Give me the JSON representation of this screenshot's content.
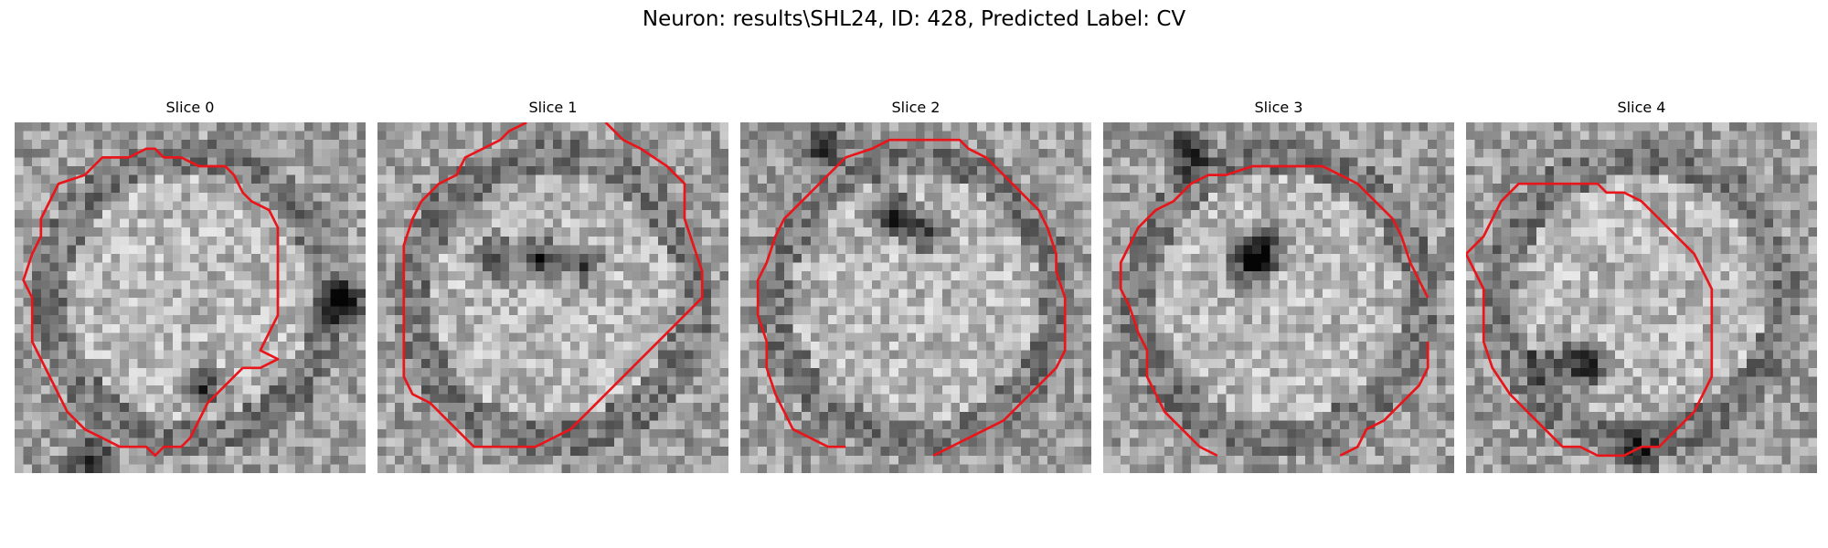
{
  "figure": {
    "title": "Neuron: results\\SHL24, ID: 428, Predicted Label: CV"
  },
  "panels": [
    {
      "title": "Slice 0",
      "seed": 11,
      "contour": [
        [
          15,
          3
        ],
        [
          16,
          3
        ],
        [
          17,
          4
        ],
        [
          19,
          4
        ],
        [
          21,
          5
        ],
        [
          24,
          5
        ],
        [
          25,
          6
        ],
        [
          26,
          8
        ],
        [
          27,
          9
        ],
        [
          29,
          10
        ],
        [
          30,
          12
        ],
        [
          30,
          22
        ],
        [
          29,
          24
        ],
        [
          28,
          26
        ],
        [
          30,
          27
        ],
        [
          28,
          28
        ],
        [
          26,
          28
        ],
        [
          24,
          30
        ],
        [
          22,
          32
        ],
        [
          21,
          34
        ],
        [
          20,
          36
        ],
        [
          19,
          37
        ],
        [
          17,
          37
        ],
        [
          16,
          38
        ],
        [
          15,
          37
        ],
        [
          12,
          37
        ],
        [
          10,
          36
        ],
        [
          8,
          35
        ],
        [
          6,
          33
        ],
        [
          5,
          31
        ],
        [
          4,
          29
        ],
        [
          3,
          27
        ],
        [
          2,
          25
        ],
        [
          2,
          20
        ],
        [
          1,
          18
        ],
        [
          2,
          15
        ],
        [
          3,
          13
        ],
        [
          3,
          11
        ],
        [
          4,
          9
        ],
        [
          5,
          7
        ],
        [
          8,
          6
        ],
        [
          10,
          4
        ],
        [
          13,
          4
        ]
      ],
      "open": false,
      "dark": [
        [
          21,
          30,
          0.5
        ],
        [
          8,
          38,
          0.6
        ],
        [
          37,
          20,
          0.7
        ]
      ]
    },
    {
      "title": "Slice 1",
      "seed": 23,
      "contour": [
        [
          17,
          0
        ],
        [
          15,
          1
        ],
        [
          14,
          2
        ],
        [
          12,
          3
        ],
        [
          10,
          4
        ],
        [
          9,
          6
        ],
        [
          7,
          7
        ],
        [
          5,
          9
        ],
        [
          4,
          11
        ],
        [
          3,
          14
        ],
        [
          3,
          29
        ],
        [
          4,
          31
        ],
        [
          6,
          32
        ],
        [
          8,
          34
        ],
        [
          10,
          36
        ],
        [
          11,
          37
        ],
        [
          13,
          37
        ],
        [
          18,
          37
        ],
        [
          20,
          36
        ],
        [
          22,
          35
        ],
        [
          24,
          33
        ],
        [
          26,
          31
        ],
        [
          28,
          29
        ],
        [
          30,
          27
        ],
        [
          33,
          24
        ],
        [
          37,
          20
        ],
        [
          37,
          17
        ],
        [
          36,
          14
        ],
        [
          35,
          11
        ],
        [
          35,
          7
        ],
        [
          33,
          5
        ],
        [
          30,
          3
        ],
        [
          28,
          2
        ],
        [
          27,
          1
        ],
        [
          26,
          0
        ]
      ],
      "open": true,
      "dark": [
        [
          13,
          15,
          0.5
        ],
        [
          18,
          15,
          0.6
        ],
        [
          23,
          16,
          0.4
        ]
      ]
    },
    {
      "title": "Slice 2",
      "seed": 37,
      "contour": [
        [
          12,
          37
        ],
        [
          10,
          37
        ],
        [
          8,
          36
        ],
        [
          6,
          35
        ],
        [
          5,
          33
        ],
        [
          4,
          31
        ],
        [
          3,
          28
        ],
        [
          3,
          25
        ],
        [
          2,
          22
        ],
        [
          2,
          18
        ],
        [
          3,
          16
        ],
        [
          4,
          13
        ],
        [
          5,
          11
        ],
        [
          6,
          10
        ],
        [
          8,
          8
        ],
        [
          10,
          6
        ],
        [
          12,
          4
        ],
        [
          15,
          3
        ],
        [
          17,
          2
        ],
        [
          20,
          2
        ],
        [
          25,
          2
        ],
        [
          26,
          3
        ],
        [
          28,
          4
        ],
        [
          30,
          6
        ],
        [
          32,
          8
        ],
        [
          34,
          10
        ],
        [
          35,
          12
        ],
        [
          36,
          15
        ],
        [
          36,
          17
        ],
        [
          37,
          20
        ],
        [
          37,
          24
        ],
        [
          37,
          26
        ],
        [
          36,
          28
        ],
        [
          34,
          30
        ],
        [
          32,
          32
        ],
        [
          30,
          34
        ],
        [
          28,
          35
        ],
        [
          26,
          36
        ],
        [
          24,
          37
        ],
        [
          22,
          38
        ]
      ],
      "open": true,
      "dark": [
        [
          17,
          10,
          0.7
        ],
        [
          21,
          12,
          0.5
        ],
        [
          9,
          2,
          0.5
        ]
      ]
    },
    {
      "title": "Slice 3",
      "seed": 53,
      "contour": [
        [
          37,
          20
        ],
        [
          36,
          18
        ],
        [
          35,
          16
        ],
        [
          34,
          13
        ],
        [
          33,
          11
        ],
        [
          31,
          9
        ],
        [
          29,
          7
        ],
        [
          27,
          6
        ],
        [
          25,
          5
        ],
        [
          22,
          5
        ],
        [
          19,
          5
        ],
        [
          17,
          5
        ],
        [
          14,
          6
        ],
        [
          12,
          6
        ],
        [
          10,
          7
        ],
        [
          8,
          9
        ],
        [
          6,
          10
        ],
        [
          4,
          12
        ],
        [
          3,
          14
        ],
        [
          2,
          16
        ],
        [
          2,
          19
        ],
        [
          3,
          21
        ],
        [
          4,
          24
        ],
        [
          5,
          26
        ],
        [
          5,
          29
        ],
        [
          6,
          31
        ],
        [
          7,
          33
        ],
        [
          9,
          35
        ],
        [
          11,
          37
        ],
        [
          13,
          38
        ]
      ],
      "open": true,
      "dark": [
        [
          16,
          16,
          0.6
        ],
        [
          18,
          14,
          0.6
        ],
        [
          9,
          3,
          0.6
        ]
      ],
      "contour2": [
        [
          27,
          38
        ],
        [
          29,
          37
        ],
        [
          30,
          35
        ],
        [
          32,
          34
        ],
        [
          34,
          32
        ],
        [
          36,
          30
        ],
        [
          37,
          28
        ],
        [
          37,
          25
        ]
      ]
    },
    {
      "title": "Slice 4",
      "seed": 71,
      "contour": [
        [
          0,
          15
        ],
        [
          2,
          13
        ],
        [
          3,
          11
        ],
        [
          4,
          9
        ],
        [
          6,
          7
        ],
        [
          8,
          7
        ],
        [
          11,
          7
        ],
        [
          15,
          7
        ],
        [
          16,
          8
        ],
        [
          18,
          8
        ],
        [
          20,
          9
        ],
        [
          22,
          11
        ],
        [
          24,
          13
        ],
        [
          26,
          15
        ],
        [
          27,
          17
        ],
        [
          28,
          19
        ],
        [
          28,
          24
        ],
        [
          28,
          29
        ],
        [
          27,
          31
        ],
        [
          26,
          33
        ],
        [
          24,
          35
        ],
        [
          22,
          37
        ],
        [
          20,
          37
        ],
        [
          18,
          38
        ],
        [
          15,
          38
        ],
        [
          13,
          37
        ],
        [
          11,
          37
        ],
        [
          9,
          35
        ],
        [
          7,
          33
        ],
        [
          5,
          31
        ],
        [
          3,
          28
        ],
        [
          2,
          25
        ],
        [
          2,
          19
        ],
        [
          1,
          17
        ]
      ],
      "open": false,
      "dark": [
        [
          13,
          27,
          0.7
        ],
        [
          19,
          37,
          0.4
        ],
        [
          9,
          27,
          0.4
        ]
      ]
    }
  ]
}
